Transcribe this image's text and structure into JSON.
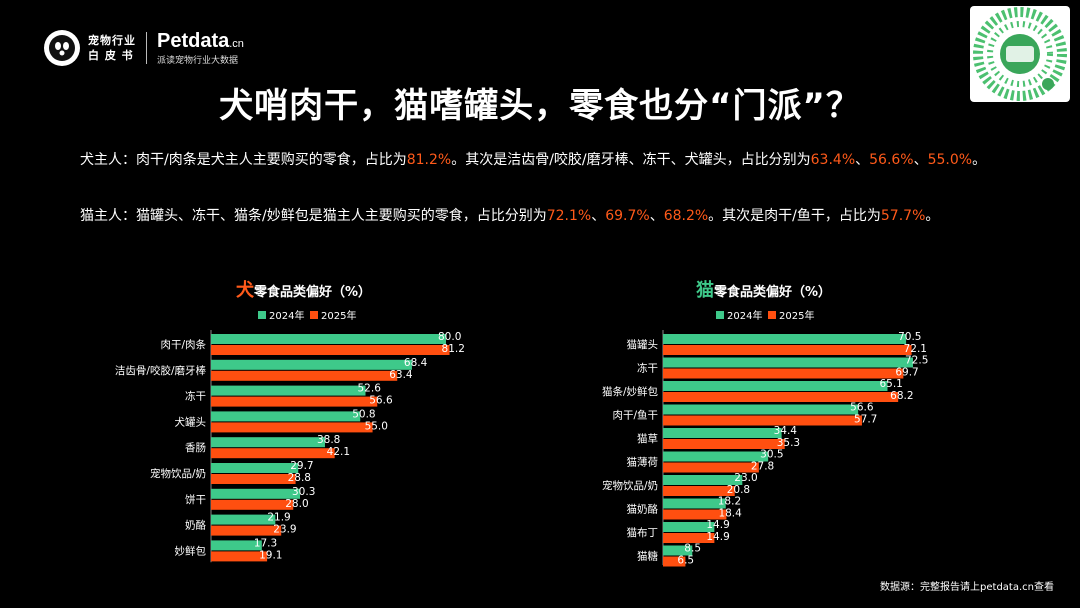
{
  "logo": {
    "line1": "宠物行业",
    "line2": "白 皮 书",
    "brand": "Petdata",
    "brand_suffix": ".cn",
    "sub": "派读宠物行业大数据"
  },
  "title": "犬哨肉干，猫嗜罐头，零食也分“门派”？",
  "paragraphs": {
    "dog_prefix": "犬主人：肉干/肉条是犬主人主要购买的零食，占比为",
    "dog_v1": "81.2%",
    "dog_mid": "。其次是洁齿骨/咬胶/磨牙棒、冻干、犬罐头，占比分别为",
    "dog_v2": "63.4%",
    "dog_sep1": "、",
    "dog_v3": "56.6%",
    "dog_sep2": "、",
    "dog_v4": "55.0%",
    "dog_end": "。",
    "cat_prefix": "猫主人：猫罐头、冻干、猫条/妙鲜包是猫主人主要购买的零食，占比分别为",
    "cat_v1": "72.1%",
    "cat_sep1": "、",
    "cat_v2": "69.7%",
    "cat_sep2": "、",
    "cat_v3": "68.2%",
    "cat_mid": "。其次是肉干/鱼干，占比为",
    "cat_v4": "57.7%",
    "cat_end": "。"
  },
  "footer": "数据源：完整报告请上petdata.cn查看",
  "colors": {
    "series_2024": "#3ec98a",
    "series_2025": "#ff4f10",
    "highlight": "#ff5a1a"
  },
  "chart_data": [
    {
      "type": "bar",
      "orientation": "horizontal",
      "title_prefix": "犬",
      "title": "零食品类偏好（%）",
      "categories": [
        "肉干/肉条",
        "洁齿骨/咬胶/磨牙棒",
        "冻干",
        "犬罐头",
        "香肠",
        "宠物饮品/奶",
        "饼干",
        "奶酪",
        "妙鲜包"
      ],
      "series": [
        {
          "name": "2024年",
          "values": [
            80.0,
            68.4,
            52.6,
            50.8,
            38.8,
            29.7,
            30.3,
            21.9,
            17.3
          ]
        },
        {
          "name": "2025年",
          "values": [
            81.2,
            63.4,
            56.6,
            55.0,
            42.1,
            28.8,
            28.0,
            23.9,
            19.1
          ]
        }
      ],
      "xlim": [
        0,
        85
      ],
      "legend": "top"
    },
    {
      "type": "bar",
      "orientation": "horizontal",
      "title_prefix": "猫",
      "title": "零食品类偏好（%）",
      "categories": [
        "猫罐头",
        "冻干",
        "猫条/妙鲜包",
        "肉干/鱼干",
        "猫草",
        "猫薄荷",
        "宠物饮品/奶",
        "猫奶酪",
        "猫布丁",
        "猫糖"
      ],
      "series": [
        {
          "name": "2024年",
          "values": [
            70.5,
            72.5,
            65.1,
            56.6,
            34.4,
            30.5,
            23.0,
            18.2,
            14.9,
            8.5
          ]
        },
        {
          "name": "2025年",
          "values": [
            72.1,
            69.7,
            68.2,
            57.7,
            35.3,
            27.8,
            20.8,
            18.4,
            14.9,
            6.5
          ]
        }
      ],
      "xlim": [
        0,
        75
      ],
      "legend": "top"
    }
  ]
}
